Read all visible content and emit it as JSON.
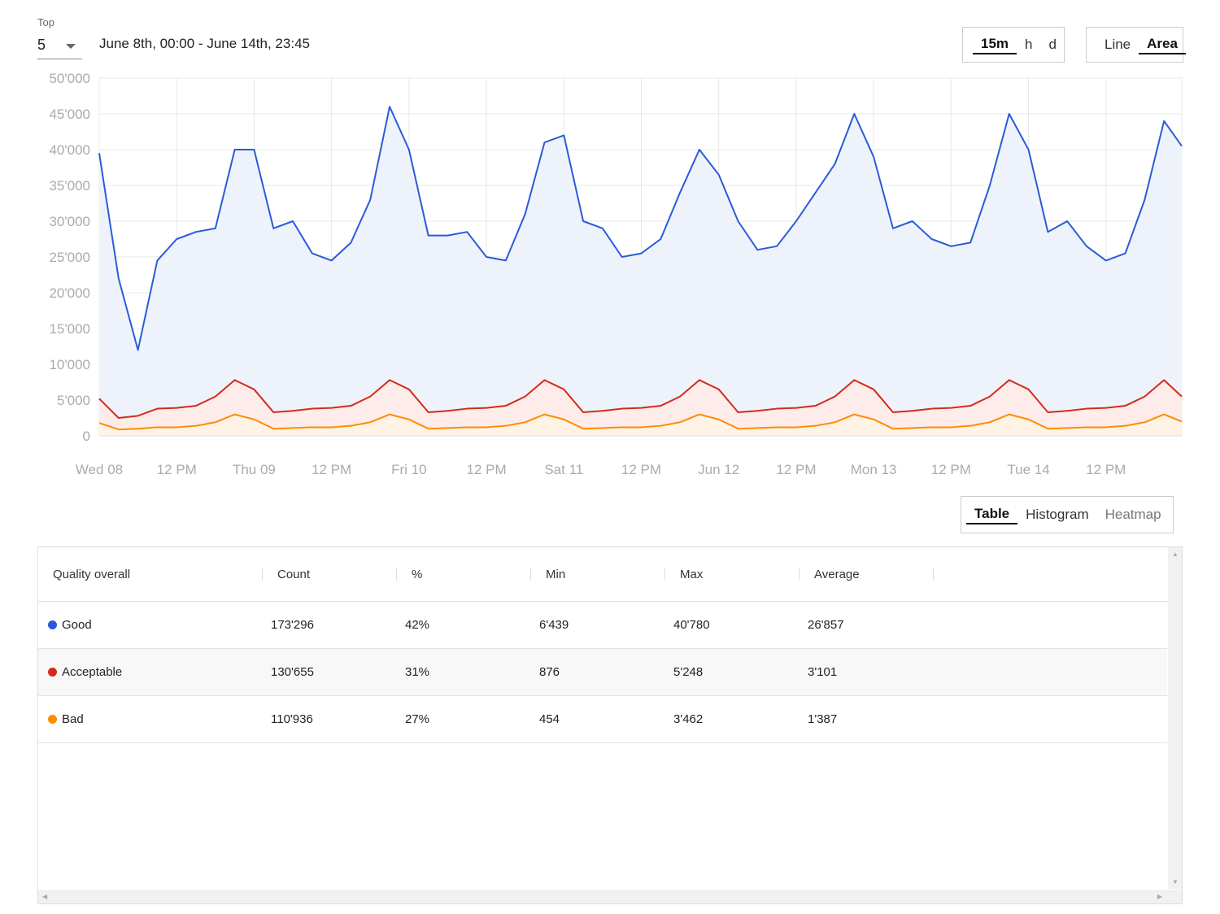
{
  "controls": {
    "top_label": "Top",
    "top_value": "5",
    "date_range": "June 8th, 00:00 - June 14th, 23:45",
    "granularity": [
      {
        "label": "15m",
        "active": true
      },
      {
        "label": "h",
        "active": false
      },
      {
        "label": "d",
        "active": false
      }
    ],
    "chart_type": [
      {
        "label": "Line",
        "active": false
      },
      {
        "label": "Area",
        "active": true
      }
    ]
  },
  "view_tabs": [
    {
      "label": "Table",
      "active": true
    },
    {
      "label": "Histogram",
      "active": false
    },
    {
      "label": "Heatmap",
      "active": false
    }
  ],
  "chart_data": {
    "type": "area",
    "stacked": true,
    "ylim": [
      0,
      50000
    ],
    "grid": true,
    "legend": "none",
    "y_ticks": [
      "0",
      "5'000",
      "10'000",
      "15'000",
      "20'000",
      "25'000",
      "30'000",
      "35'000",
      "40'000",
      "45'000",
      "50'000"
    ],
    "x_ticks": [
      "Wed 08",
      "12 PM",
      "Thu 09",
      "12 PM",
      "Fri 10",
      "12 PM",
      "Sat 11",
      "12 PM",
      "Jun 12",
      "12 PM",
      "Mon 13",
      "12 PM",
      "Tue 14",
      "12 PM"
    ],
    "x": [
      "06-08 00:00",
      "06-08 03:00",
      "06-08 06:00",
      "06-08 09:00",
      "06-08 12:00",
      "06-08 15:00",
      "06-08 18:00",
      "06-08 21:00",
      "06-09 00:00",
      "06-09 03:00",
      "06-09 06:00",
      "06-09 09:00",
      "06-09 12:00",
      "06-09 15:00",
      "06-09 18:00",
      "06-09 21:00",
      "06-10 00:00",
      "06-10 03:00",
      "06-10 06:00",
      "06-10 09:00",
      "06-10 12:00",
      "06-10 15:00",
      "06-10 18:00",
      "06-10 21:00",
      "06-11 00:00",
      "06-11 03:00",
      "06-11 06:00",
      "06-11 09:00",
      "06-11 12:00",
      "06-11 15:00",
      "06-11 18:00",
      "06-11 21:00",
      "06-12 00:00",
      "06-12 03:00",
      "06-12 06:00",
      "06-12 09:00",
      "06-12 12:00",
      "06-12 15:00",
      "06-12 18:00",
      "06-12 21:00",
      "06-13 00:00",
      "06-13 03:00",
      "06-13 06:00",
      "06-13 09:00",
      "06-13 12:00",
      "06-13 15:00",
      "06-13 18:00",
      "06-13 21:00",
      "06-14 00:00",
      "06-14 03:00",
      "06-14 06:00",
      "06-14 09:00",
      "06-14 12:00",
      "06-14 15:00",
      "06-14 18:00",
      "06-14 21:00",
      "06-14 23:45"
    ],
    "series": [
      {
        "name": "Bad",
        "color": "#ff8c00",
        "fill": "#fff3e6",
        "values": [
          1800,
          900,
          1000,
          1200,
          1200,
          1400,
          1900,
          3000,
          2300,
          1000,
          1100,
          1200,
          1200,
          1400,
          1900,
          3000,
          2300,
          1000,
          1100,
          1200,
          1200,
          1400,
          1900,
          3000,
          2300,
          1000,
          1100,
          1200,
          1200,
          1400,
          1900,
          3000,
          2300,
          1000,
          1100,
          1200,
          1200,
          1400,
          1900,
          3000,
          2300,
          1000,
          1100,
          1200,
          1200,
          1400,
          1900,
          3000,
          2300,
          1000,
          1100,
          1200,
          1200,
          1400,
          1900,
          3000,
          2000
        ]
      },
      {
        "name": "Acceptable",
        "color": "#d42a1b",
        "fill": "#fdecea",
        "values": [
          3400,
          1600,
          1800,
          2600,
          2700,
          2800,
          3600,
          4800,
          4200,
          2300,
          2400,
          2600,
          2700,
          2800,
          3600,
          4800,
          4200,
          2300,
          2400,
          2600,
          2700,
          2800,
          3600,
          4800,
          4200,
          2300,
          2400,
          2600,
          2700,
          2800,
          3600,
          4800,
          4200,
          2300,
          2400,
          2600,
          2700,
          2800,
          3600,
          4800,
          4200,
          2300,
          2400,
          2600,
          2700,
          2800,
          3600,
          4800,
          4200,
          2300,
          2400,
          2600,
          2700,
          2800,
          3600,
          4800,
          3500
        ]
      },
      {
        "name": "Good",
        "color": "#2a5bd7",
        "fill": "#eef3fb",
        "values": [
          34300,
          19500,
          9200,
          20700,
          23600,
          24300,
          23500,
          32200,
          33500,
          25700,
          26500,
          21700,
          20600,
          22800,
          27500,
          38200,
          33500,
          24700,
          24500,
          24700,
          21100,
          20300,
          25500,
          33200,
          35500,
          26700,
          25500,
          21200,
          21600,
          23300,
          28500,
          32200,
          30000,
          26700,
          22500,
          22700,
          26100,
          29800,
          32500,
          37200,
          32500,
          25700,
          26500,
          23700,
          22600,
          22800,
          29500,
          37200,
          33500,
          25200,
          26500,
          22700,
          20600,
          21300,
          27500,
          36200,
          35000
        ]
      }
    ]
  },
  "table": {
    "headers": [
      "Quality overall",
      "Count",
      "%",
      "Min",
      "Max",
      "Average"
    ],
    "rows": [
      {
        "name": "Good",
        "color": "#2a5bd7",
        "count": "173'296",
        "pct": "42%",
        "min": "6'439",
        "max": "40'780",
        "avg": "26'857"
      },
      {
        "name": "Acceptable",
        "color": "#d42a1b",
        "count": "130'655",
        "pct": "31%",
        "min": "876",
        "max": "5'248",
        "avg": "3'101"
      },
      {
        "name": "Bad",
        "color": "#ff8c00",
        "count": "110'936",
        "pct": "27%",
        "min": "454",
        "max": "3'462",
        "avg": "1'387"
      }
    ]
  }
}
